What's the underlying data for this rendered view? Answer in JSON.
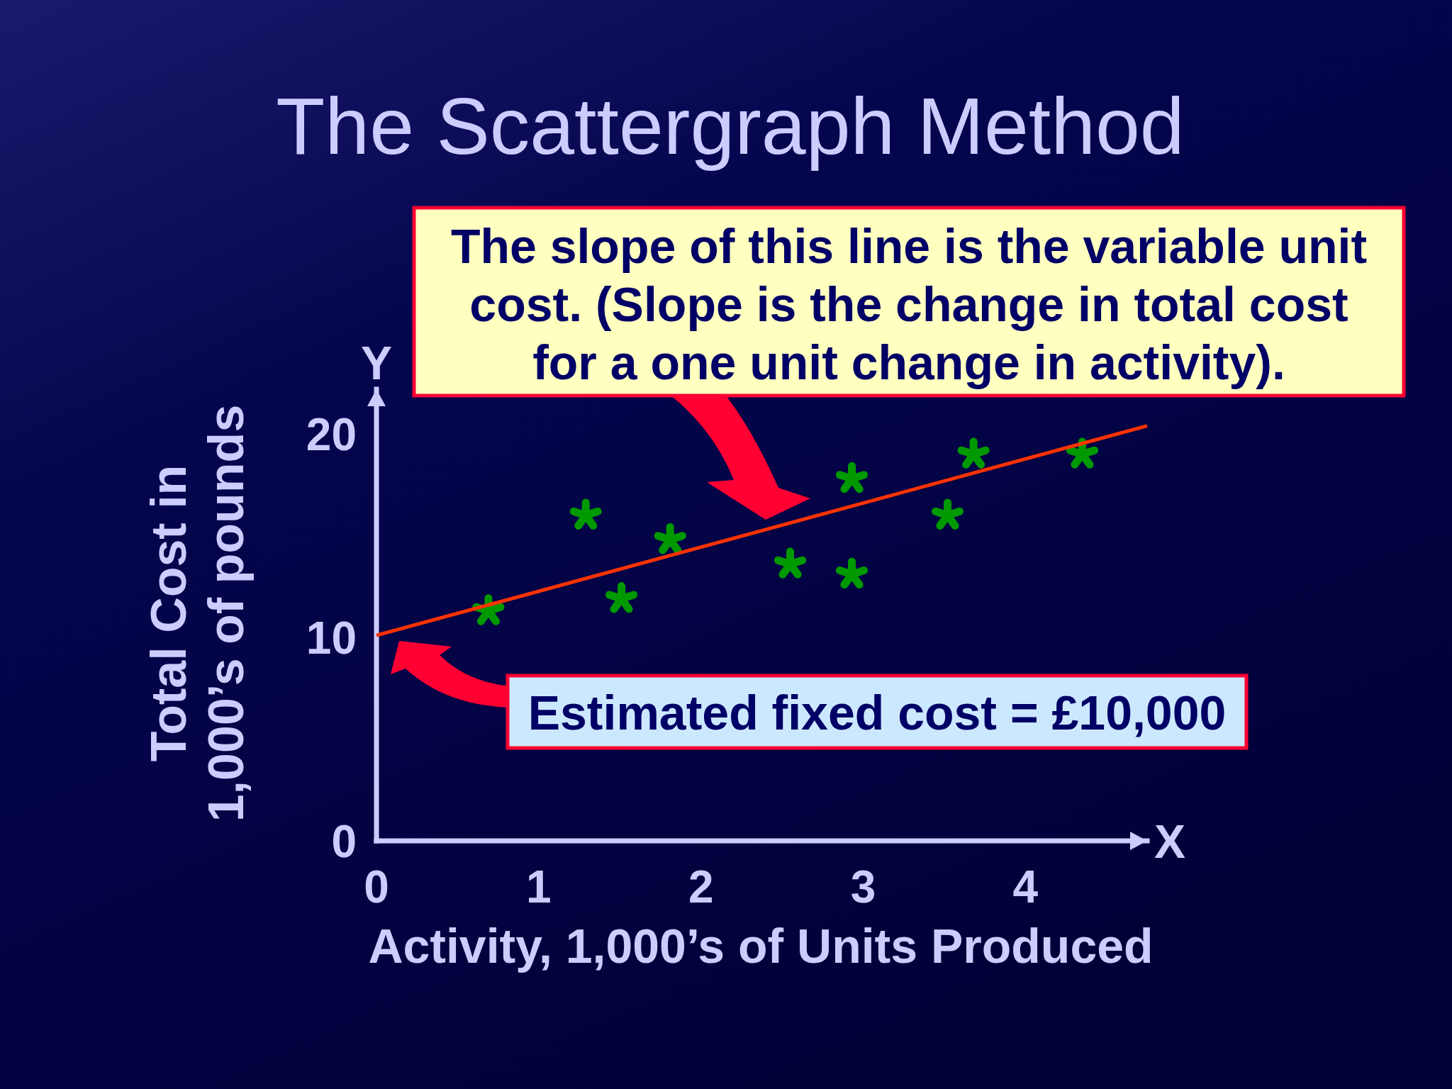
{
  "chart_data": {
    "type": "scatter",
    "title": "The Scattergraph Method",
    "xlabel": "Activity, 1,000’s of Units Produced",
    "ylabel": "Total Cost in\n1,000’s of pounds",
    "annotations": [
      "The slope of this line is the variable unit\ncost. (Slope is the change in total cost\nfor a one unit change in activity).",
      "Estimated fixed cost = £10,000",
      "X",
      "Y"
    ],
    "series": [
      {
        "color": "#009900",
        "x": [
          0.69,
          1.29,
          1.51,
          1.81,
          2.55,
          2.93,
          2.93,
          3.52,
          3.68,
          4.35
        ],
        "values": [
          11.3,
          16.0,
          11.9,
          14.8,
          13.6,
          17.8,
          13.1,
          16.0,
          19.0,
          19.0
        ]
      },
      {
        "type": "line",
        "color": "#ff3300",
        "marker": "none",
        "x": [
          0,
          4.75
        ],
        "values": [
          10.1,
          20.4
        ]
      }
    ],
    "xlim": [
      0,
      4.75
    ],
    "ylim": [
      0,
      22.2
    ],
    "xticks": [
      0,
      1,
      2,
      3,
      4
    ],
    "yticks": [
      0,
      10,
      20
    ],
    "marker": "star"
  }
}
